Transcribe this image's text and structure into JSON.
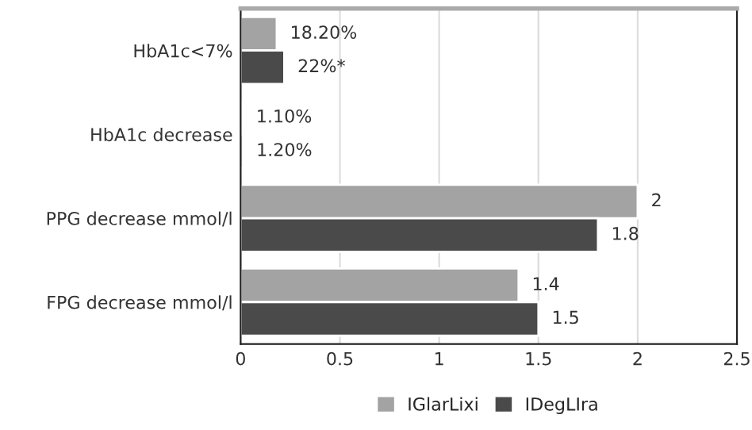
{
  "chart_data": {
    "type": "bar",
    "orientation": "horizontal",
    "categories": [
      "HbA1c<7%",
      "HbA1c decrease",
      "PPG decrease mmol/l",
      "FPG decrease mmol/l"
    ],
    "series": [
      {
        "name": "IGlarLixi",
        "color": "#a3a3a3",
        "values": [
          0.182,
          0.011,
          2,
          1.4
        ],
        "value_labels": [
          "18.20%",
          "1.10%",
          "2",
          "1.4"
        ]
      },
      {
        "name": "IDegLIra",
        "color": "#4a4a4a",
        "values": [
          0.22,
          0.012,
          1.8,
          1.5
        ],
        "value_labels": [
          "22%*",
          "1.20%",
          "1.8",
          "1.5"
        ]
      }
    ],
    "xlim": [
      0,
      2.5
    ],
    "xticks": [
      0,
      0.5,
      1,
      1.5,
      2,
      2.5
    ],
    "grid": "x",
    "legend": "bottom"
  }
}
